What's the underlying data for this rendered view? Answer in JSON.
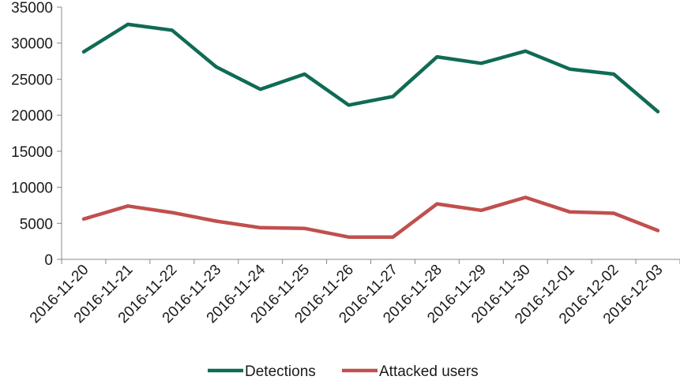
{
  "chart_data": {
    "type": "line",
    "title": "",
    "xlabel": "",
    "ylabel": "",
    "categories": [
      "2016-11-20",
      "2016-11-21",
      "2016-11-22",
      "2016-11-23",
      "2016-11-24",
      "2016-11-25",
      "2016-11-26",
      "2016-11-27",
      "2016-11-28",
      "2016-11-29",
      "2016-11-30",
      "2016-12-01",
      "2016-12-02",
      "2016-12-03"
    ],
    "yticks": [
      "0",
      "5000",
      "10000",
      "15000",
      "20000",
      "25000",
      "30000",
      "35000"
    ],
    "ylim": [
      0,
      35000
    ],
    "grid": false,
    "legend_position": "bottom",
    "series": [
      {
        "name": "Detections",
        "color": "#0f6b55",
        "values": [
          28800,
          32600,
          31800,
          26700,
          23600,
          25700,
          21400,
          22600,
          28100,
          27200,
          28900,
          26400,
          25700,
          20500
        ]
      },
      {
        "name": "Attacked users",
        "color": "#c0504d",
        "values": [
          5600,
          7400,
          6500,
          5300,
          4400,
          4300,
          3100,
          3100,
          7700,
          6800,
          8600,
          6600,
          6400,
          4000
        ]
      }
    ]
  }
}
